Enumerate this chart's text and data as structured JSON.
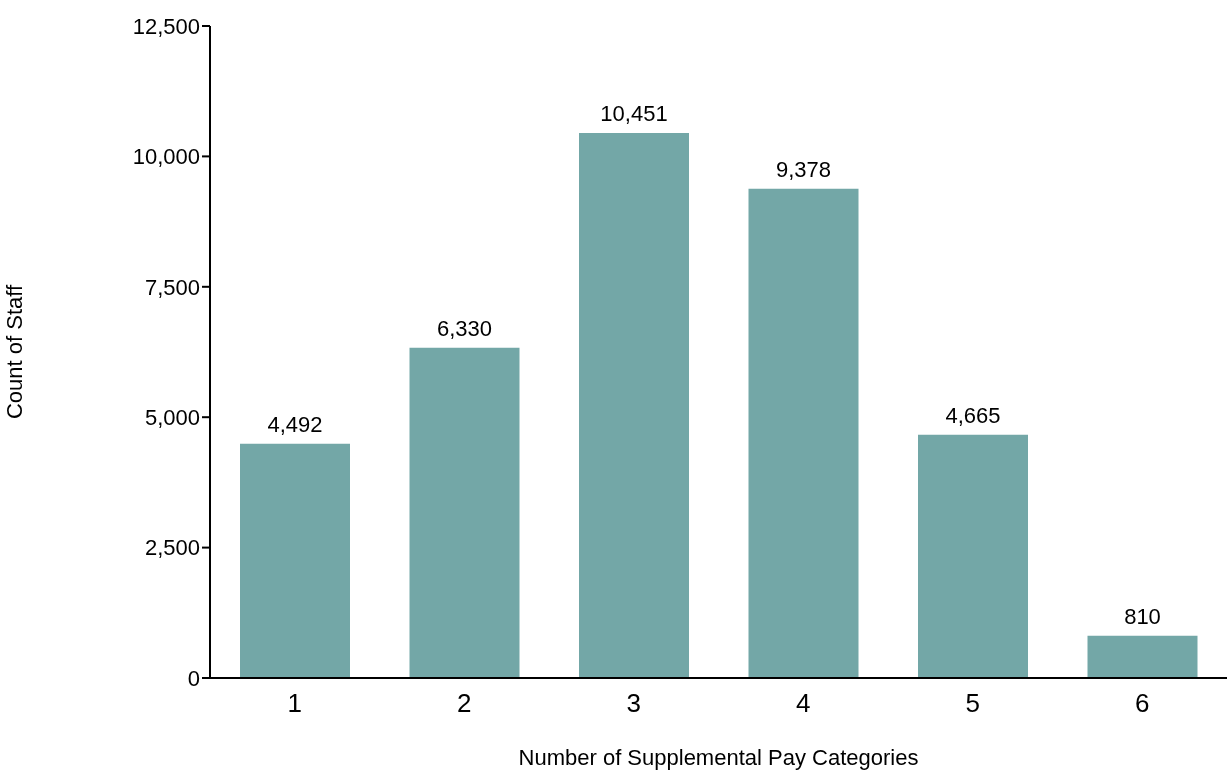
{
  "chart_data": {
    "type": "bar",
    "xlabel": "Number of Supplemental Pay Categories",
    "ylabel": "Count of Staff",
    "categories": [
      "1",
      "2",
      "3",
      "4",
      "5",
      "6"
    ],
    "values": [
      4492,
      6330,
      10451,
      9378,
      4665,
      810
    ],
    "color": "#73a7a7",
    "value_labels": [
      "4,492",
      "6,330",
      "10,451",
      "9,378",
      "4,665",
      "810"
    ],
    "ylim": [
      0,
      12500
    ],
    "yticks": [
      0,
      {
        "value": 2500,
        "label": "2,500"
      },
      {
        "value": 5000,
        "label": "5,000"
      },
      {
        "value": 7500,
        "label": "7,500"
      },
      {
        "value": 10000,
        "label": "10,000"
      },
      {
        "value": 12500,
        "label": "12,500"
      }
    ],
    "grid": false
  }
}
